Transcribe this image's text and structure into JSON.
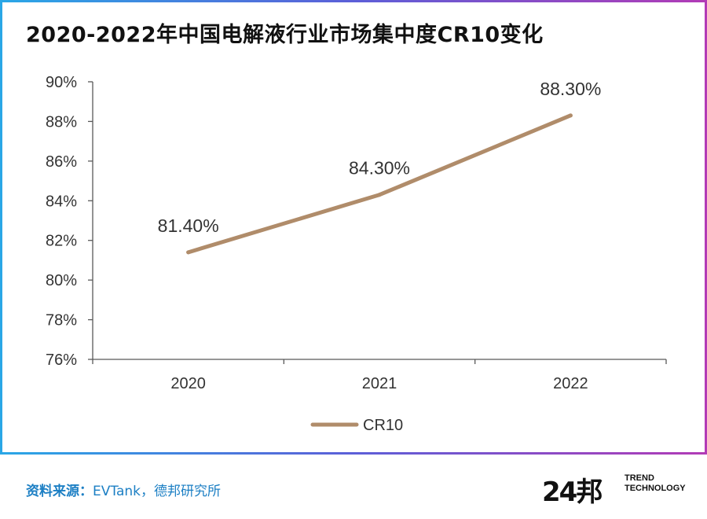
{
  "title": "2020-2022年中国电解液行业市场集中度CR10变化",
  "chart_data": {
    "type": "line",
    "categories": [
      "2020",
      "2021",
      "2022"
    ],
    "series": [
      {
        "name": "CR10",
        "values": [
          81.4,
          84.3,
          88.3
        ],
        "labels": [
          "81.40%",
          "84.30%",
          "88.30%"
        ],
        "color": "#b08c6a"
      }
    ],
    "ylim": [
      76,
      90
    ],
    "yticks": [
      "76%",
      "78%",
      "80%",
      "82%",
      "84%",
      "86%",
      "88%",
      "90%"
    ],
    "ytick_values": [
      76,
      78,
      80,
      82,
      84,
      86,
      88,
      90
    ],
    "grid": false,
    "legend": "bottom"
  },
  "footer": {
    "source_label": "资料来源：",
    "source_text": "EVTank，德邦研究所"
  },
  "logo": {
    "mark": "24邦",
    "line1": "TREND",
    "line2": "TECHNOLOGY"
  },
  "colors": {
    "line": "#b08c6a",
    "axis": "#595959",
    "source": "#1c7fc4"
  }
}
